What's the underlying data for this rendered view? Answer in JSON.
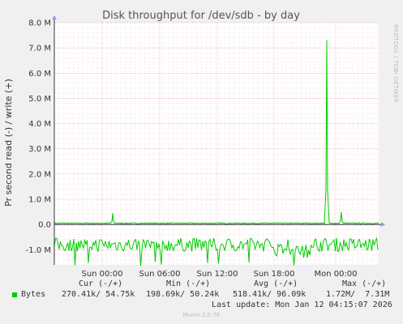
{
  "chart_data": {
    "type": "line",
    "title": "Disk throughput for /dev/sdb - by day",
    "ylabel": "Pr second read (-) / write (+)",
    "side_label": "RRDTOOL / TOBI OETIKER",
    "ylim": [
      -1.6,
      8.0
    ],
    "y_ticks": [
      {
        "value": 8.0,
        "label": "8.0 M"
      },
      {
        "value": 7.0,
        "label": "7.0 M"
      },
      {
        "value": 6.0,
        "label": "6.0 M"
      },
      {
        "value": 5.0,
        "label": "5.0 M"
      },
      {
        "value": 4.0,
        "label": "4.0 M"
      },
      {
        "value": 3.0,
        "label": "3.0 M"
      },
      {
        "value": 2.0,
        "label": "2.0 M"
      },
      {
        "value": 1.0,
        "label": "1.0 M"
      },
      {
        "value": 0.0,
        "label": "0.0"
      },
      {
        "value": -1.0,
        "label": "-1.0 M"
      }
    ],
    "x_ticks": [
      "Sun 00:00",
      "Sun 06:00",
      "Sun 12:00",
      "Sun 18:00",
      "Mon 00:00"
    ],
    "series": [
      {
        "name": "Bytes",
        "direction": "write",
        "color": "#00cc00",
        "baseline": 0.05,
        "spikes": [
          {
            "x": 0.18,
            "value": 0.45
          },
          {
            "x": 0.84,
            "value": 7.31
          },
          {
            "x": 0.885,
            "value": 0.5
          }
        ]
      },
      {
        "name": "Bytes",
        "direction": "read",
        "color": "#00cc00",
        "baseline": -0.8,
        "min": -1.65
      }
    ]
  },
  "legend": {
    "header_cur": "Cur (-/+)",
    "header_min": "Min (-/+)",
    "header_avg": "Avg (-/+)",
    "header_max": "Max (-/+)",
    "series_name": "Bytes",
    "series_color": "#00cc00",
    "cur": "270.41k/ 54.75k",
    "min": "198.69k/ 50.24k",
    "avg": "518.41k/ 96.09k",
    "max": "1.72M/  7.31M",
    "last_update": "Last update: Mon Jan 12 04:15:07 2026"
  },
  "footer": "Munin 2.0.76"
}
